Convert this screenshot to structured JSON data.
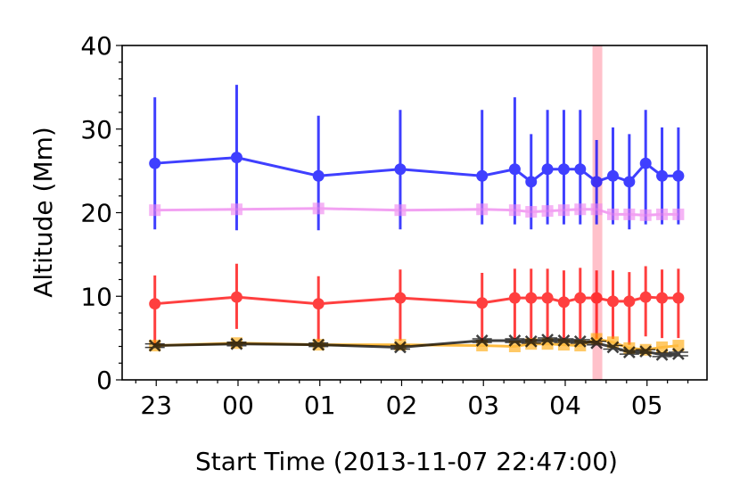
{
  "chart_data": {
    "type": "line",
    "title": "",
    "xlabel": "Start Time (2013-11-07 22:47:00)",
    "ylabel": "Altitude (Mm)",
    "ylim": [
      0,
      40
    ],
    "yticks": [
      0,
      10,
      20,
      30,
      40
    ],
    "y_minor_step": 2,
    "xticks": [
      "23",
      "00",
      "01",
      "02",
      "03",
      "04",
      "05"
    ],
    "xtick_hours_from_start": [
      0.2167,
      1.2167,
      2.2167,
      3.2167,
      4.2167,
      5.2167,
      6.2167
    ],
    "x_minor_step_hours": 0.25,
    "xlim_hours_from_start": [
      -0.2,
      6.95
    ],
    "grid": false,
    "legend": null,
    "highlight_band": {
      "x_start_hours": 5.55,
      "x_end_hours": 5.67,
      "color": "#ffb6c1"
    },
    "x": [
      "22:59",
      "23:59",
      "00:59",
      "01:59",
      "02:59",
      "03:23",
      "03:35",
      "03:47",
      "03:59",
      "04:11",
      "04:23",
      "04:35",
      "04:47",
      "04:59",
      "05:11",
      "05:23"
    ],
    "x_hours_from_start": [
      0.2,
      1.2,
      2.2,
      3.2,
      4.2,
      4.6,
      4.8,
      5.0,
      5.2,
      5.4,
      5.6,
      5.8,
      6.0,
      6.2,
      6.4,
      6.6
    ],
    "series": [
      {
        "name": "blue-circles",
        "color": "#0000ff",
        "marker": "circle",
        "values": [
          25.9,
          26.6,
          24.4,
          25.2,
          24.4,
          25.2,
          23.7,
          25.2,
          25.2,
          25.2,
          23.7,
          24.4,
          23.7,
          25.9,
          24.4,
          24.4
        ],
        "err_upper": [
          33.8,
          35.3,
          31.6,
          32.3,
          32.3,
          33.8,
          29.4,
          32.3,
          32.3,
          32.3,
          28.7,
          30.2,
          29.4,
          32.3,
          30.2,
          30.2
        ],
        "err_lower": [
          18.0,
          17.9,
          17.9,
          18.0,
          18.6,
          18.6,
          18.0,
          18.6,
          18.6,
          18.6,
          18.6,
          18.6,
          18.0,
          18.6,
          18.6,
          18.6
        ]
      },
      {
        "name": "violet-squares",
        "color": "#ee82ee",
        "marker": "square",
        "values": [
          20.3,
          20.4,
          20.5,
          20.3,
          20.4,
          20.3,
          20.1,
          20.2,
          20.3,
          20.4,
          20.4,
          19.8,
          19.8,
          19.7,
          19.8,
          19.8
        ]
      },
      {
        "name": "red-circles",
        "color": "#ff0000",
        "marker": "circle",
        "values": [
          9.1,
          9.9,
          9.1,
          9.8,
          9.2,
          9.8,
          9.8,
          9.8,
          9.3,
          9.8,
          9.8,
          9.4,
          9.4,
          9.9,
          9.8,
          9.8
        ],
        "err_upper": [
          12.5,
          13.9,
          12.4,
          13.2,
          12.8,
          13.3,
          13.3,
          13.3,
          13.1,
          13.4,
          13.1,
          13.1,
          12.9,
          13.6,
          13.2,
          13.3
        ],
        "err_lower": [
          4.2,
          6.1,
          4.6,
          4.7,
          4.6,
          4.9,
          4.6,
          4.9,
          4.9,
          4.9,
          4.9,
          4.9,
          4.2,
          5.2,
          5.0,
          5.0
        ]
      },
      {
        "name": "orange-squares",
        "color": "#ffa500",
        "marker": "square",
        "values": [
          4.1,
          4.4,
          4.2,
          4.2,
          4.1,
          4.0,
          4.3,
          4.3,
          4.2,
          4.1,
          4.9,
          4.5,
          3.8,
          3.6,
          3.9,
          4.1
        ]
      },
      {
        "name": "black-crosses",
        "color": "#000000",
        "marker": "x",
        "values": [
          4.1,
          4.3,
          4.2,
          3.9,
          4.7,
          4.7,
          4.6,
          4.8,
          4.7,
          4.6,
          4.4,
          3.9,
          3.3,
          3.4,
          3.0,
          3.1
        ],
        "xerr_hours": 0.12
      }
    ]
  }
}
